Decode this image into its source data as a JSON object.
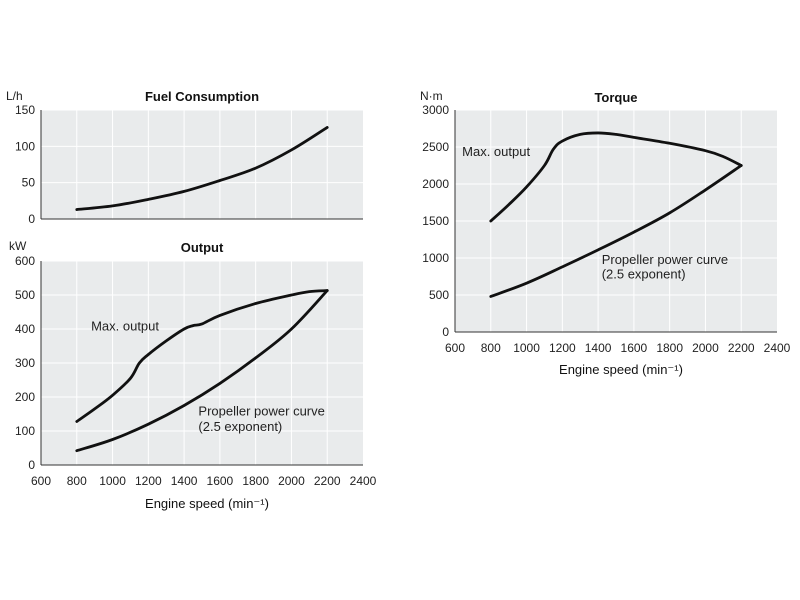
{
  "chart_data": [
    {
      "id": "fuel",
      "type": "line",
      "title": "Fuel Consumption",
      "ylabel": "L/h",
      "xlabel": "",
      "xlim": [
        600,
        2400
      ],
      "ylim": [
        0,
        150
      ],
      "yticks": [
        0,
        50,
        100,
        150
      ],
      "xticks": [],
      "grid": true,
      "series": [
        {
          "name": "",
          "x": [
            800,
            1000,
            1200,
            1400,
            1600,
            1800,
            2000,
            2200
          ],
          "y": [
            13,
            18,
            27,
            38,
            53,
            70,
            95,
            126
          ]
        }
      ],
      "annotations": []
    },
    {
      "id": "output",
      "type": "line",
      "title": "Output",
      "ylabel": "kW",
      "xlabel": "Engine speed (min⁻¹)",
      "xlim": [
        600,
        2400
      ],
      "ylim": [
        0,
        600
      ],
      "yticks": [
        0,
        100,
        200,
        300,
        400,
        500,
        600
      ],
      "xticks": [
        600,
        800,
        1000,
        1200,
        1400,
        1600,
        1800,
        2000,
        2200,
        2400
      ],
      "grid": true,
      "series": [
        {
          "name": "Max. output",
          "x": [
            800,
            900,
            1000,
            1100,
            1150,
            1200,
            1300,
            1400,
            1450,
            1500,
            1600,
            1800,
            2000,
            2100,
            2200
          ],
          "y": [
            128,
            165,
            205,
            255,
            300,
            325,
            365,
            400,
            410,
            415,
            440,
            475,
            500,
            510,
            513
          ]
        },
        {
          "name": "Propeller power curve (2.5 exponent)",
          "x": [
            800,
            1000,
            1200,
            1400,
            1600,
            1800,
            2000,
            2200
          ],
          "y": [
            42,
            75,
            120,
            175,
            240,
            315,
            400,
            513
          ]
        }
      ],
      "annotations": [
        {
          "text": "Max. output",
          "x": 880,
          "y": 395
        },
        {
          "text": "Propeller power curve",
          "x": 1480,
          "y": 145
        },
        {
          "text": "(2.5 exponent)",
          "x": 1480,
          "y": 100
        }
      ]
    },
    {
      "id": "torque",
      "type": "line",
      "title": "Torque",
      "ylabel": "N·m",
      "xlabel": "Engine speed (min⁻¹)",
      "xlim": [
        600,
        2400
      ],
      "ylim": [
        0,
        3000
      ],
      "yticks": [
        0,
        500,
        1000,
        1500,
        2000,
        2500,
        3000
      ],
      "xticks": [
        600,
        800,
        1000,
        1200,
        1400,
        1600,
        1800,
        2000,
        2200,
        2400
      ],
      "grid": true,
      "series": [
        {
          "name": "Max. output",
          "x": [
            800,
            900,
            1000,
            1100,
            1150,
            1200,
            1300,
            1400,
            1500,
            1600,
            1800,
            2000,
            2100,
            2200
          ],
          "y": [
            1500,
            1720,
            1960,
            2250,
            2470,
            2580,
            2670,
            2690,
            2670,
            2630,
            2550,
            2450,
            2370,
            2250
          ]
        },
        {
          "name": "Propeller power curve (2.5 exponent)",
          "x": [
            800,
            1000,
            1200,
            1400,
            1600,
            1800,
            2000,
            2200
          ],
          "y": [
            480,
            660,
            880,
            1110,
            1350,
            1610,
            1920,
            2250
          ]
        }
      ],
      "annotations": [
        {
          "text": "Max. output",
          "x": 640,
          "y": 2380
        },
        {
          "text": "Propeller power curve",
          "x": 1420,
          "y": 920
        },
        {
          "text": "(2.5 exponent)",
          "x": 1420,
          "y": 720
        }
      ]
    }
  ]
}
